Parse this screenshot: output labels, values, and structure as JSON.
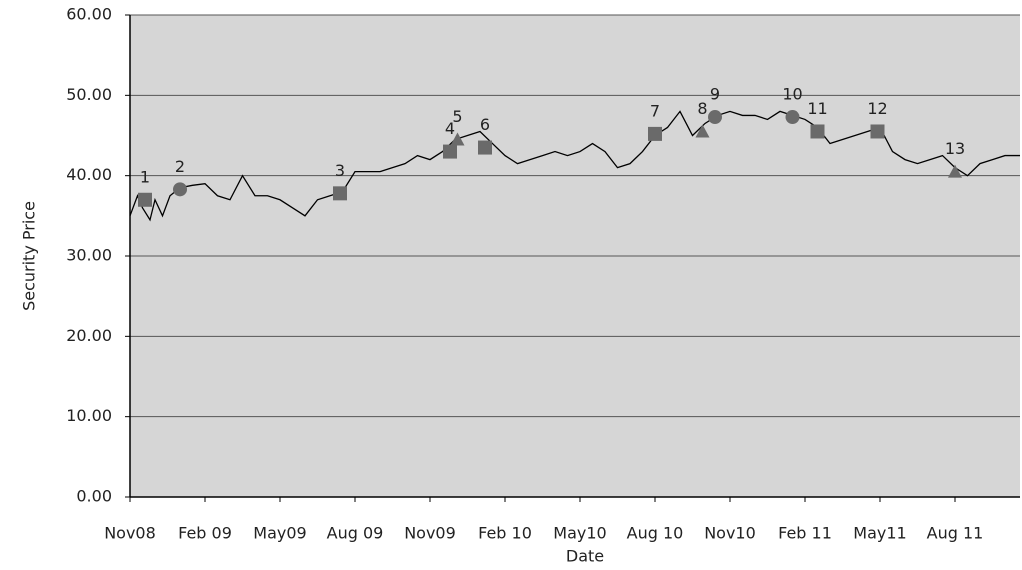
{
  "chart_data": {
    "type": "line",
    "x_label": "Date",
    "y_label": "Security Price",
    "xlim": [
      0,
      35.6
    ],
    "xticks": [
      {
        "value": 0,
        "label": "Nov08"
      },
      {
        "value": 3,
        "label": "Feb 09"
      },
      {
        "value": 6,
        "label": "May09"
      },
      {
        "value": 9,
        "label": "Aug 09"
      },
      {
        "value": 12,
        "label": "Nov09"
      },
      {
        "value": 15,
        "label": "Feb 10"
      },
      {
        "value": 18,
        "label": "May10"
      },
      {
        "value": 21,
        "label": "Aug 10"
      },
      {
        "value": 24,
        "label": "Nov10"
      },
      {
        "value": 27,
        "label": "Feb 11"
      },
      {
        "value": 30,
        "label": "May11"
      },
      {
        "value": 33,
        "label": "Aug 11"
      }
    ],
    "ylim": [
      0,
      60
    ],
    "yticks": [
      {
        "value": 0,
        "label": "0.00"
      },
      {
        "value": 10,
        "label": "10.00"
      },
      {
        "value": 20,
        "label": "20.00"
      },
      {
        "value": 30,
        "label": "30.00"
      },
      {
        "value": 40,
        "label": "40.00"
      },
      {
        "value": 50,
        "label": "50.00"
      },
      {
        "value": 60,
        "label": "60.00"
      }
    ],
    "grid": true,
    "series": [
      {
        "color": "#000000",
        "x": [
          0,
          0.3,
          0.5,
          0.8,
          1,
          1.3,
          1.6,
          2,
          2.5,
          3,
          3.5,
          4,
          4.5,
          5,
          5.5,
          6,
          6.5,
          7,
          7.5,
          8,
          8.5,
          9,
          9.5,
          10,
          10.5,
          11,
          11.5,
          12,
          12.5,
          13,
          13.5,
          14,
          14.5,
          15,
          15.5,
          16,
          16.5,
          17,
          17.5,
          18,
          18.5,
          19,
          19.5,
          20,
          20.5,
          21,
          21.5,
          22,
          22.5,
          23,
          23.5,
          24,
          24.5,
          25,
          25.5,
          26,
          26.5,
          27,
          27.5,
          28,
          28.5,
          29,
          29.5,
          30,
          30.5,
          31,
          31.5,
          32,
          32.5,
          33,
          33.5,
          34,
          34.5,
          35,
          35.6
        ],
        "values": [
          35,
          37.5,
          36,
          34.5,
          37,
          35,
          37.5,
          38.5,
          38.8,
          39,
          37.5,
          37,
          40,
          37.5,
          37.5,
          37,
          36,
          35,
          37,
          37.5,
          38,
          40.5,
          40.5,
          40.5,
          41,
          41.5,
          42.5,
          42,
          43,
          44.5,
          45,
          45.5,
          44,
          42.5,
          41.5,
          42,
          42.5,
          43,
          42.5,
          43,
          44,
          43,
          41,
          41.5,
          43,
          45,
          46,
          48,
          45,
          46.5,
          47.5,
          48,
          47.5,
          47.5,
          47,
          48,
          47.5,
          47,
          46,
          44,
          44.5,
          45,
          45.5,
          46,
          43,
          42,
          41.5,
          42,
          42.5,
          41,
          40,
          41.5,
          42,
          42.5,
          42.5
        ]
      }
    ],
    "markers": [
      {
        "label": "1",
        "x": 0.6,
        "y": 37,
        "shape": "square"
      },
      {
        "label": "2",
        "x": 2.0,
        "y": 38.3,
        "shape": "circle"
      },
      {
        "label": "3",
        "x": 8.4,
        "y": 37.8,
        "shape": "square"
      },
      {
        "label": "4",
        "x": 12.8,
        "y": 43,
        "shape": "square"
      },
      {
        "label": "5",
        "x": 13.1,
        "y": 44.5,
        "shape": "triangle"
      },
      {
        "label": "6",
        "x": 14.2,
        "y": 43.5,
        "shape": "square"
      },
      {
        "label": "7",
        "x": 21.0,
        "y": 45.2,
        "shape": "square"
      },
      {
        "label": "8",
        "x": 22.9,
        "y": 45.5,
        "shape": "triangle"
      },
      {
        "label": "9",
        "x": 23.4,
        "y": 47.3,
        "shape": "circle"
      },
      {
        "label": "10",
        "x": 26.5,
        "y": 47.3,
        "shape": "circle"
      },
      {
        "label": "11",
        "x": 27.5,
        "y": 45.5,
        "shape": "square"
      },
      {
        "label": "12",
        "x": 29.9,
        "y": 45.5,
        "shape": "square"
      },
      {
        "label": "13",
        "x": 33.0,
        "y": 40.5,
        "shape": "triangle"
      }
    ]
  }
}
